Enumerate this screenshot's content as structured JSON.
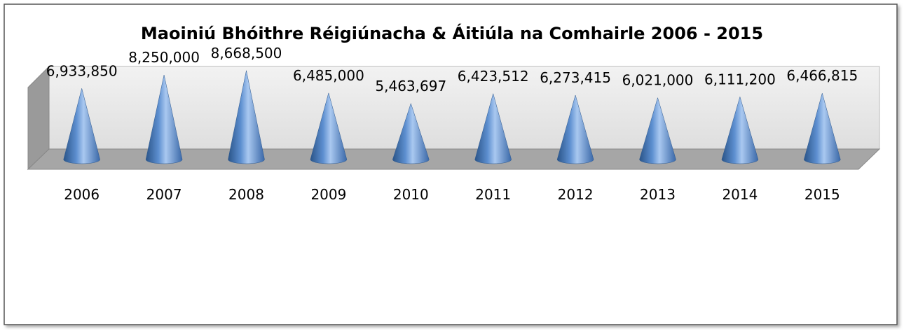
{
  "chart_data": {
    "type": "cone",
    "title": "Maoiniú Bhóithre Réigiúnacha & Áitiúla na Comhairle 2006 - 2015",
    "categories": [
      "2006",
      "2007",
      "2008",
      "2009",
      "2010",
      "2011",
      "2012",
      "2013",
      "2014",
      "2015"
    ],
    "values": [
      6933850,
      8250000,
      8668500,
      6485000,
      5463697,
      6423512,
      6273415,
      6021000,
      6111200,
      6466815
    ],
    "value_labels": [
      "6,933,850",
      "8,250,000",
      "8,668,500",
      "6,485,000",
      "5,463,697",
      "6,423,512",
      "6,273,415",
      "6,021,000",
      "6,111,200",
      "6,466,815"
    ],
    "color": "#4f81bd",
    "ylim": [
      0,
      9000000
    ]
  }
}
